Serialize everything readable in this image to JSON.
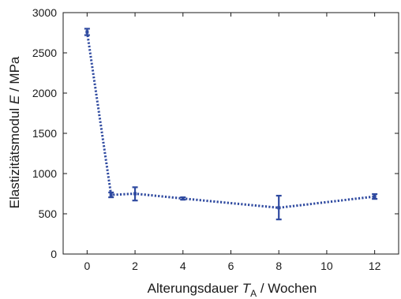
{
  "chart_data": {
    "type": "line",
    "title": "",
    "xlabel": {
      "prefix": "Alterungsdauer ",
      "symbol": "T",
      "subscript": "A",
      "suffix": " / Wochen"
    },
    "ylabel": {
      "prefix": "Elastizitätsmodul ",
      "symbol": "E",
      "suffix": " / MPa"
    },
    "xlim": [
      -1,
      13
    ],
    "ylim": [
      0,
      3000
    ],
    "xticks": [
      0,
      2,
      4,
      6,
      8,
      10,
      12
    ],
    "yticks": [
      0,
      500,
      1000,
      1500,
      2000,
      2500,
      3000
    ],
    "grid": false,
    "legend": "none",
    "series": [
      {
        "color": "#2f4aa0",
        "line_style": "dotted",
        "points": [
          {
            "x": 0,
            "y": 2760,
            "err_low": 2720,
            "err_high": 2800
          },
          {
            "x": 1,
            "y": 735,
            "err_low": 705,
            "err_high": 765
          },
          {
            "x": 2,
            "y": 750,
            "err_low": 665,
            "err_high": 830
          },
          {
            "x": 4,
            "y": 690,
            "err_low": 675,
            "err_high": 705
          },
          {
            "x": 8,
            "y": 575,
            "err_low": 430,
            "err_high": 725
          },
          {
            "x": 12,
            "y": 715,
            "err_low": 685,
            "err_high": 745
          }
        ]
      }
    ]
  }
}
